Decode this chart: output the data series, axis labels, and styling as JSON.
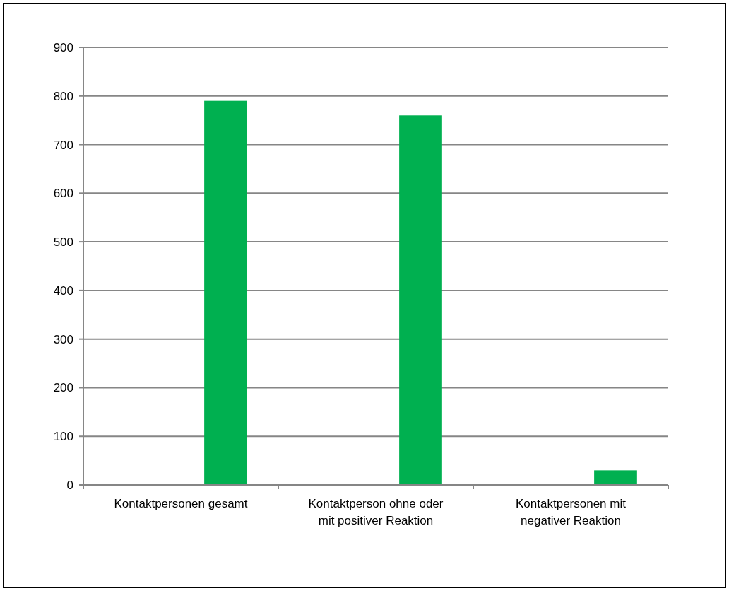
{
  "chart_data": {
    "type": "bar",
    "categories": [
      "Kontaktpersonen gesamt",
      "Kontaktperson ohne oder mit positiver Reaktion",
      "Kontaktpersonen mit negativer Reaktion"
    ],
    "values": [
      790,
      760,
      30
    ],
    "color": "#00b050",
    "ylim": [
      0,
      900
    ],
    "yticks": [
      0,
      100,
      200,
      300,
      400,
      500,
      600,
      700,
      800,
      900
    ],
    "grid": "y"
  }
}
